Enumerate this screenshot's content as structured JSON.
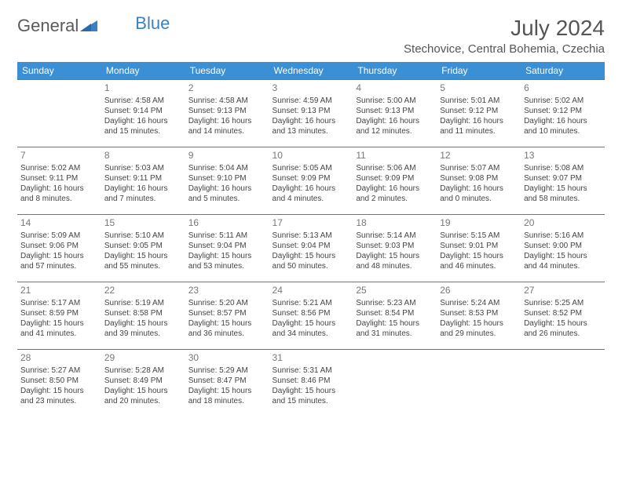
{
  "logo": {
    "text_gray": "General",
    "text_blue": "Blue"
  },
  "title": "July 2024",
  "location": "Stechovice, Central Bohemia, Czechia",
  "colors": {
    "header_bg": "#3b8fd4",
    "header_text": "#ffffff",
    "border": "#3b7fc4",
    "text": "#444444",
    "daynum": "#777777",
    "logo_gray": "#5a5a5a",
    "logo_blue": "#3b7fc4"
  },
  "day_headers": [
    "Sunday",
    "Monday",
    "Tuesday",
    "Wednesday",
    "Thursday",
    "Friday",
    "Saturday"
  ],
  "weeks": [
    [
      {
        "day": "",
        "sunrise": "",
        "sunset": "",
        "daylight": ""
      },
      {
        "day": "1",
        "sunrise": "Sunrise: 4:58 AM",
        "sunset": "Sunset: 9:14 PM",
        "daylight": "Daylight: 16 hours and 15 minutes."
      },
      {
        "day": "2",
        "sunrise": "Sunrise: 4:58 AM",
        "sunset": "Sunset: 9:13 PM",
        "daylight": "Daylight: 16 hours and 14 minutes."
      },
      {
        "day": "3",
        "sunrise": "Sunrise: 4:59 AM",
        "sunset": "Sunset: 9:13 PM",
        "daylight": "Daylight: 16 hours and 13 minutes."
      },
      {
        "day": "4",
        "sunrise": "Sunrise: 5:00 AM",
        "sunset": "Sunset: 9:13 PM",
        "daylight": "Daylight: 16 hours and 12 minutes."
      },
      {
        "day": "5",
        "sunrise": "Sunrise: 5:01 AM",
        "sunset": "Sunset: 9:12 PM",
        "daylight": "Daylight: 16 hours and 11 minutes."
      },
      {
        "day": "6",
        "sunrise": "Sunrise: 5:02 AM",
        "sunset": "Sunset: 9:12 PM",
        "daylight": "Daylight: 16 hours and 10 minutes."
      }
    ],
    [
      {
        "day": "7",
        "sunrise": "Sunrise: 5:02 AM",
        "sunset": "Sunset: 9:11 PM",
        "daylight": "Daylight: 16 hours and 8 minutes."
      },
      {
        "day": "8",
        "sunrise": "Sunrise: 5:03 AM",
        "sunset": "Sunset: 9:11 PM",
        "daylight": "Daylight: 16 hours and 7 minutes."
      },
      {
        "day": "9",
        "sunrise": "Sunrise: 5:04 AM",
        "sunset": "Sunset: 9:10 PM",
        "daylight": "Daylight: 16 hours and 5 minutes."
      },
      {
        "day": "10",
        "sunrise": "Sunrise: 5:05 AM",
        "sunset": "Sunset: 9:09 PM",
        "daylight": "Daylight: 16 hours and 4 minutes."
      },
      {
        "day": "11",
        "sunrise": "Sunrise: 5:06 AM",
        "sunset": "Sunset: 9:09 PM",
        "daylight": "Daylight: 16 hours and 2 minutes."
      },
      {
        "day": "12",
        "sunrise": "Sunrise: 5:07 AM",
        "sunset": "Sunset: 9:08 PM",
        "daylight": "Daylight: 16 hours and 0 minutes."
      },
      {
        "day": "13",
        "sunrise": "Sunrise: 5:08 AM",
        "sunset": "Sunset: 9:07 PM",
        "daylight": "Daylight: 15 hours and 58 minutes."
      }
    ],
    [
      {
        "day": "14",
        "sunrise": "Sunrise: 5:09 AM",
        "sunset": "Sunset: 9:06 PM",
        "daylight": "Daylight: 15 hours and 57 minutes."
      },
      {
        "day": "15",
        "sunrise": "Sunrise: 5:10 AM",
        "sunset": "Sunset: 9:05 PM",
        "daylight": "Daylight: 15 hours and 55 minutes."
      },
      {
        "day": "16",
        "sunrise": "Sunrise: 5:11 AM",
        "sunset": "Sunset: 9:04 PM",
        "daylight": "Daylight: 15 hours and 53 minutes."
      },
      {
        "day": "17",
        "sunrise": "Sunrise: 5:13 AM",
        "sunset": "Sunset: 9:04 PM",
        "daylight": "Daylight: 15 hours and 50 minutes."
      },
      {
        "day": "18",
        "sunrise": "Sunrise: 5:14 AM",
        "sunset": "Sunset: 9:03 PM",
        "daylight": "Daylight: 15 hours and 48 minutes."
      },
      {
        "day": "19",
        "sunrise": "Sunrise: 5:15 AM",
        "sunset": "Sunset: 9:01 PM",
        "daylight": "Daylight: 15 hours and 46 minutes."
      },
      {
        "day": "20",
        "sunrise": "Sunrise: 5:16 AM",
        "sunset": "Sunset: 9:00 PM",
        "daylight": "Daylight: 15 hours and 44 minutes."
      }
    ],
    [
      {
        "day": "21",
        "sunrise": "Sunrise: 5:17 AM",
        "sunset": "Sunset: 8:59 PM",
        "daylight": "Daylight: 15 hours and 41 minutes."
      },
      {
        "day": "22",
        "sunrise": "Sunrise: 5:19 AM",
        "sunset": "Sunset: 8:58 PM",
        "daylight": "Daylight: 15 hours and 39 minutes."
      },
      {
        "day": "23",
        "sunrise": "Sunrise: 5:20 AM",
        "sunset": "Sunset: 8:57 PM",
        "daylight": "Daylight: 15 hours and 36 minutes."
      },
      {
        "day": "24",
        "sunrise": "Sunrise: 5:21 AM",
        "sunset": "Sunset: 8:56 PM",
        "daylight": "Daylight: 15 hours and 34 minutes."
      },
      {
        "day": "25",
        "sunrise": "Sunrise: 5:23 AM",
        "sunset": "Sunset: 8:54 PM",
        "daylight": "Daylight: 15 hours and 31 minutes."
      },
      {
        "day": "26",
        "sunrise": "Sunrise: 5:24 AM",
        "sunset": "Sunset: 8:53 PM",
        "daylight": "Daylight: 15 hours and 29 minutes."
      },
      {
        "day": "27",
        "sunrise": "Sunrise: 5:25 AM",
        "sunset": "Sunset: 8:52 PM",
        "daylight": "Daylight: 15 hours and 26 minutes."
      }
    ],
    [
      {
        "day": "28",
        "sunrise": "Sunrise: 5:27 AM",
        "sunset": "Sunset: 8:50 PM",
        "daylight": "Daylight: 15 hours and 23 minutes."
      },
      {
        "day": "29",
        "sunrise": "Sunrise: 5:28 AM",
        "sunset": "Sunset: 8:49 PM",
        "daylight": "Daylight: 15 hours and 20 minutes."
      },
      {
        "day": "30",
        "sunrise": "Sunrise: 5:29 AM",
        "sunset": "Sunset: 8:47 PM",
        "daylight": "Daylight: 15 hours and 18 minutes."
      },
      {
        "day": "31",
        "sunrise": "Sunrise: 5:31 AM",
        "sunset": "Sunset: 8:46 PM",
        "daylight": "Daylight: 15 hours and 15 minutes."
      },
      {
        "day": "",
        "sunrise": "",
        "sunset": "",
        "daylight": ""
      },
      {
        "day": "",
        "sunrise": "",
        "sunset": "",
        "daylight": ""
      },
      {
        "day": "",
        "sunrise": "",
        "sunset": "",
        "daylight": ""
      }
    ]
  ]
}
